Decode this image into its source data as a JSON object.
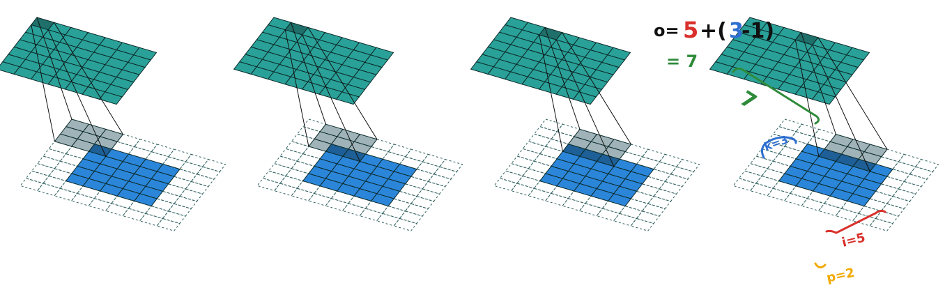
{
  "figure": {
    "panel_count": 4,
    "input_size": 5,
    "padding": 2,
    "kernel_size": 3,
    "output_size": 7,
    "kernel_positions": [
      {
        "row": 0,
        "col": 0
      },
      {
        "row": 0,
        "col": 1
      },
      {
        "row": 0,
        "col": 2
      },
      {
        "row": 0,
        "col": 3
      }
    ],
    "colors": {
      "output": "#2aa198",
      "output_highlight": "#1f6f6a",
      "input": "#2b86d9",
      "input_under_kernel": "#1d5f96",
      "kernel": "#9fb3b8",
      "padding_grid": "#2f5f5f",
      "grid_line": "#0b2a2a",
      "annot_red": "#d9302c",
      "annot_blue": "#2f6fd1",
      "annot_green": "#2e8b3a",
      "annot_orange": "#f2a900",
      "annot_black": "#111111"
    }
  },
  "annotations": {
    "formula_o": "o=",
    "formula_i": "5",
    "formula_plus": "+(",
    "formula_k": "3",
    "formula_minus": "-1)",
    "formula_equals": "= 7",
    "label_output": "7",
    "label_kernel": "k=3",
    "label_input": "i=5",
    "label_padding": "p=2"
  }
}
